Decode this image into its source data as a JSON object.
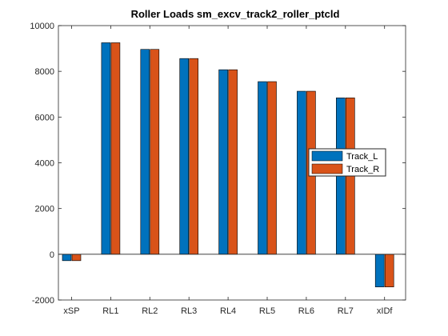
{
  "chart_data": {
    "type": "bar",
    "title": "Roller Loads sm_excv_track2_roller_ptcld",
    "xlabel": "",
    "ylabel": "",
    "categories": [
      "xSP",
      "RL1",
      "RL2",
      "RL3",
      "RL4",
      "RL5",
      "RL6",
      "RL7",
      "xIDf"
    ],
    "series": [
      {
        "name": "Track_L",
        "color": "#0072BD",
        "values": [
          -280,
          9250,
          8960,
          8560,
          8070,
          7550,
          7130,
          6840,
          -1430
        ]
      },
      {
        "name": "Track_R",
        "color": "#D95319",
        "values": [
          -280,
          9250,
          8960,
          8560,
          8070,
          7550,
          7130,
          6840,
          -1430
        ]
      }
    ],
    "ylim": [
      -2000,
      10000
    ],
    "yticks": [
      "-2000",
      "0",
      "2000",
      "4000",
      "6000",
      "8000",
      "10000"
    ],
    "grid": false,
    "legend_position": "right"
  }
}
